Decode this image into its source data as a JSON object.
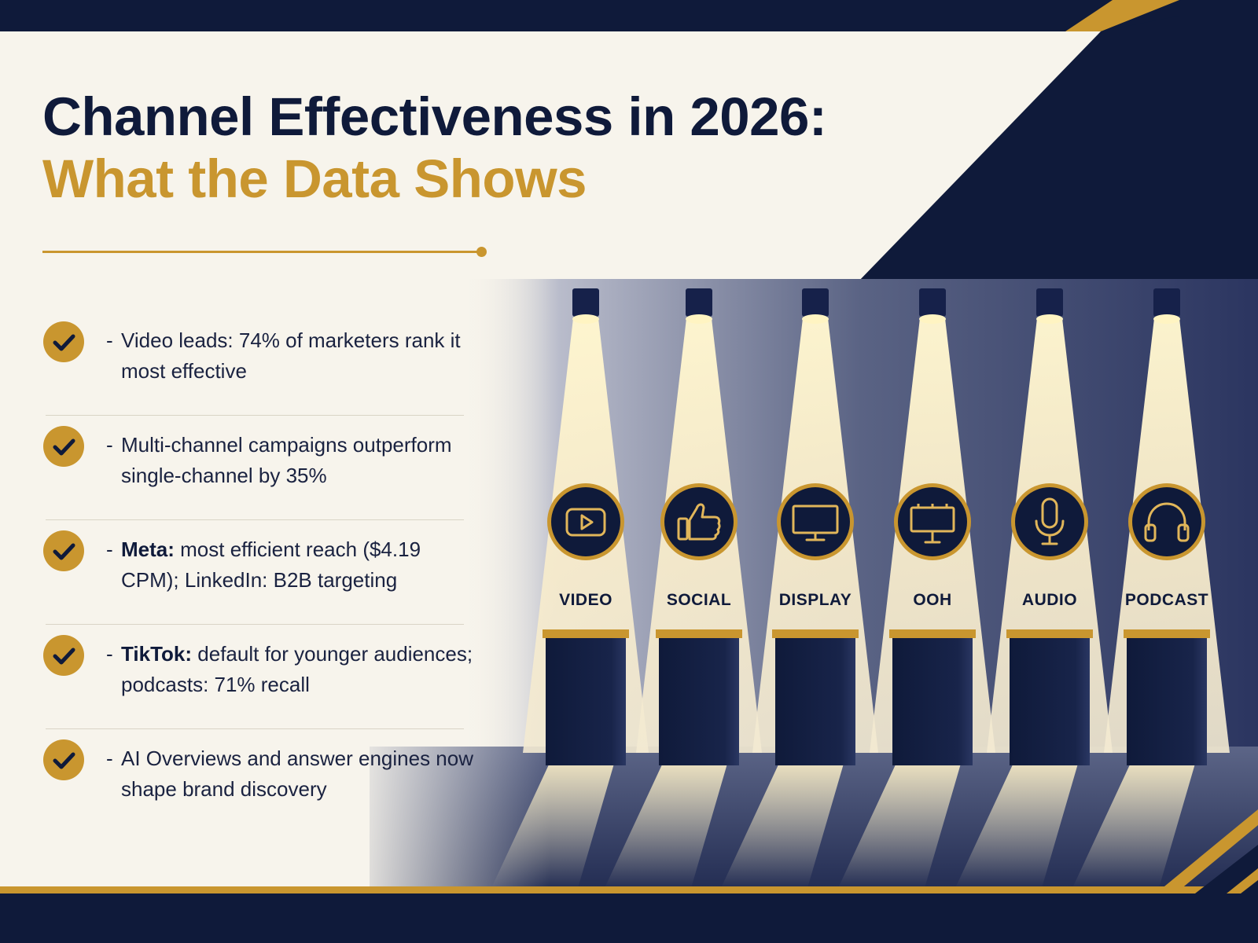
{
  "title": {
    "line1": "Channel Effectiveness in 2026:",
    "line2": "What the Data Shows"
  },
  "bullets": [
    {
      "dash": "-",
      "bold": "",
      "text": "Video leads: 74% of marketers rank it most effective"
    },
    {
      "dash": "-",
      "bold": "",
      "text": "Multi-channel campaigns outperform single-channel by 35%"
    },
    {
      "dash": "-",
      "bold": "Meta:",
      "text": " most efficient reach ($4.19 CPM); LinkedIn: B2B targeting"
    },
    {
      "dash": "-",
      "bold": "TikTok:",
      "text": " default for younger audiences; podcasts: 71% recall"
    },
    {
      "dash": "-",
      "bold": "",
      "text": "AI Overviews and answer engines now shape brand discovery"
    }
  ],
  "channels": [
    {
      "label": "VIDEO",
      "icon": "video-play-icon"
    },
    {
      "label": "SOCIAL",
      "icon": "thumbs-up-icon"
    },
    {
      "label": "DISPLAY",
      "icon": "monitor-icon"
    },
    {
      "label": "OOH",
      "icon": "billboard-icon"
    },
    {
      "label": "AUDIO",
      "icon": "microphone-icon"
    },
    {
      "label": "PODCAST",
      "icon": "headphones-icon"
    }
  ],
  "colors": {
    "navy": "#0f1a3a",
    "gold": "#c9962f",
    "cream": "#f7f4ec"
  }
}
